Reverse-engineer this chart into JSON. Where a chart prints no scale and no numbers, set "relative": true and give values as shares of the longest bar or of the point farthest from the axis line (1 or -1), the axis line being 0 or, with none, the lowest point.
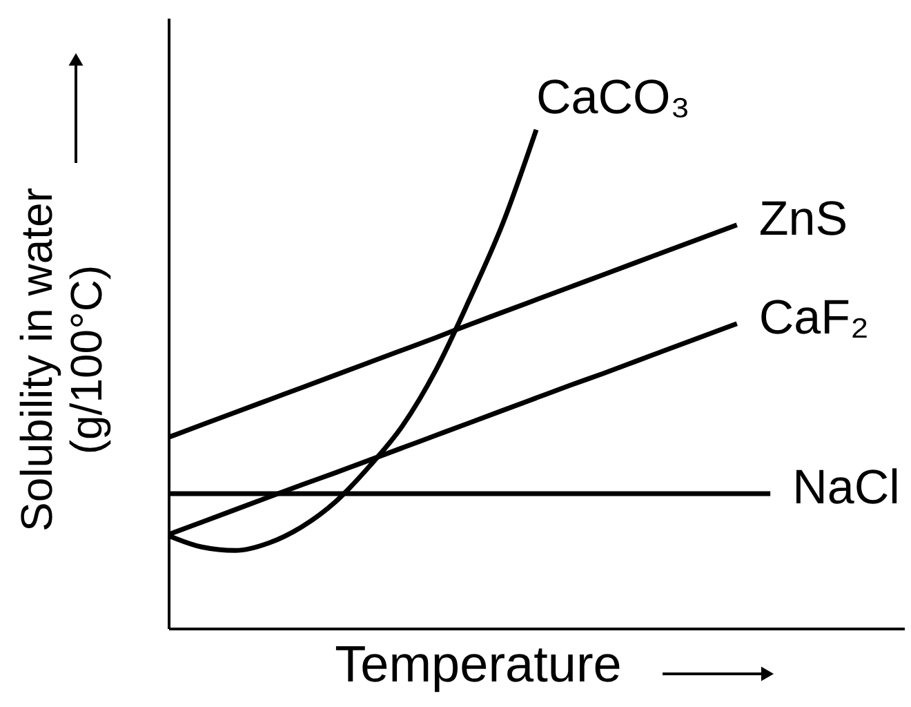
{
  "chart_data": {
    "type": "line",
    "relative": true,
    "xlabel": "Temperature",
    "ylabel": "Solubility in water\n(g/100°C)",
    "line_style": "solid",
    "categories": [
      null,
      null,
      null,
      null,
      null,
      null,
      null,
      null,
      null,
      null,
      null,
      null,
      null,
      null,
      null,
      null,
      null,
      null,
      null,
      null,
      null,
      null,
      null
    ],
    "series": [
      {
        "name": "CaCO₃",
        "color": "#000000",
        "values": [
          0.186,
          0.163,
          0.156,
          0.171,
          0.204,
          0.254,
          0.324,
          0.406,
          0.518,
          0.659,
          0.812,
          1.0,
          null,
          null,
          null,
          null,
          null,
          null,
          null,
          null,
          null,
          null,
          null
        ]
      },
      {
        "name": "ZnS",
        "color": "#000000",
        "values": [
          0.383,
          0.408,
          0.433,
          0.458,
          0.483,
          0.508,
          0.533,
          0.558,
          0.583,
          0.609,
          0.634,
          0.659,
          0.684,
          0.709,
          0.734,
          0.759,
          0.784,
          0.809,
          null,
          null,
          null,
          null,
          null
        ]
      },
      {
        "name": "CaF₂",
        "color": "#000000",
        "values": [
          0.188,
          0.213,
          0.238,
          0.263,
          0.288,
          0.312,
          0.337,
          0.362,
          0.387,
          0.412,
          0.437,
          0.462,
          0.487,
          0.511,
          0.536,
          0.561,
          0.586,
          0.611,
          null,
          null,
          null,
          null,
          null
        ]
      },
      {
        "name": "NaCl",
        "color": "#000000",
        "values": [
          0.27,
          0.27,
          0.27,
          0.27,
          0.27,
          0.27,
          0.27,
          0.27,
          0.27,
          0.27,
          0.27,
          0.27,
          0.27,
          0.27,
          0.27,
          0.27,
          0.27,
          0.27,
          0.27,
          null,
          null,
          null,
          null
        ]
      }
    ]
  }
}
